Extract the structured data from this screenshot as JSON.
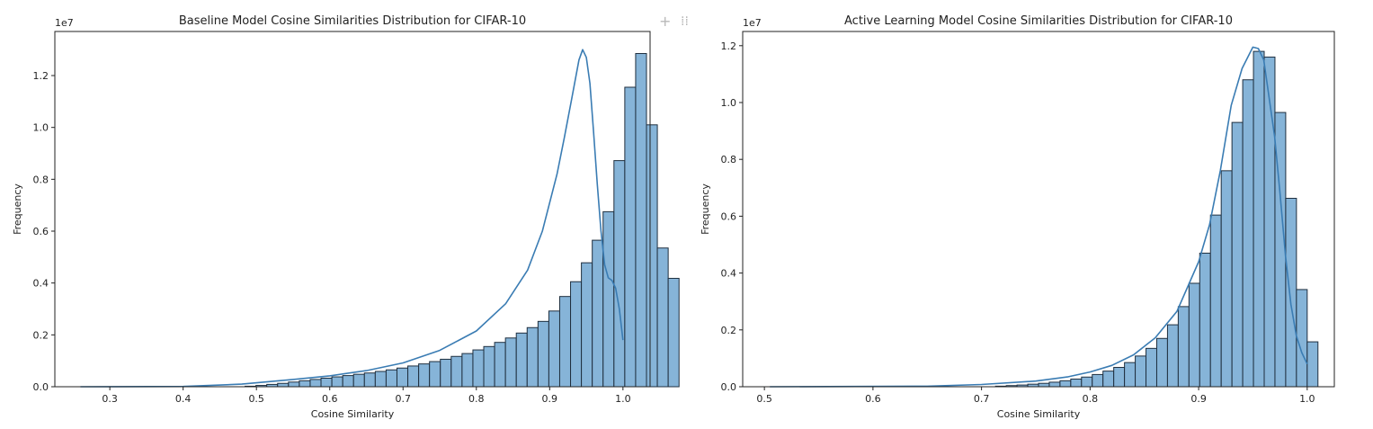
{
  "toolbar": {
    "plus_icon": "+",
    "drag_icon": "⁞⁞"
  },
  "chart_data": [
    {
      "type": "bar",
      "title": "Baseline Model Cosine Similarities Distribution for CIFAR-10",
      "xlabel": "Cosine Similarity",
      "ylabel": "Frequency",
      "y_scale_label": "1e7",
      "xlim": [
        0.225,
        1.037
      ],
      "ylim": [
        0,
        1.37
      ],
      "xticks": [
        0.3,
        0.4,
        0.5,
        0.6,
        0.7,
        0.8,
        0.9,
        1.0
      ],
      "xtick_labels": [
        "0.3",
        "0.4",
        "0.5",
        "0.6",
        "0.7",
        "0.8",
        "0.9",
        "1.0"
      ],
      "yticks": [
        0.0,
        0.2,
        0.4,
        0.6,
        0.8,
        1.0,
        1.2
      ],
      "ytick_labels": [
        "0.0",
        "0.2",
        "0.4",
        "0.6",
        "0.8",
        "1.0",
        "1.2"
      ],
      "grid": false,
      "bin_start": 0.2625,
      "bin_width": 0.0148,
      "values": [
        0,
        0,
        0,
        0,
        0,
        0,
        0,
        0,
        0,
        0,
        0,
        0,
        0,
        0,
        0,
        0.002,
        0.005,
        0.009,
        0.013,
        0.018,
        0.023,
        0.028,
        0.033,
        0.038,
        0.043,
        0.048,
        0.053,
        0.059,
        0.065,
        0.072,
        0.08,
        0.088,
        0.097,
        0.106,
        0.117,
        0.128,
        0.142,
        0.155,
        0.171,
        0.188,
        0.207,
        0.228,
        0.252,
        0.292,
        0.348,
        0.405,
        0.478,
        0.565,
        0.675,
        0.872,
        1.155,
        1.285,
        1.01,
        0.535,
        0.418
      ],
      "kde_x": [
        0.26,
        0.4,
        0.48,
        0.55,
        0.6,
        0.65,
        0.7,
        0.75,
        0.8,
        0.84,
        0.87,
        0.89,
        0.91,
        0.92,
        0.93,
        0.94,
        0.945,
        0.95,
        0.955,
        0.96,
        0.965,
        0.97,
        0.975,
        0.98,
        0.985,
        0.99,
        0.995,
        1.0
      ],
      "kde_y": [
        0,
        0.001,
        0.01,
        0.028,
        0.042,
        0.062,
        0.092,
        0.14,
        0.215,
        0.32,
        0.45,
        0.6,
        0.82,
        0.96,
        1.11,
        1.26,
        1.3,
        1.27,
        1.17,
        0.98,
        0.78,
        0.6,
        0.47,
        0.42,
        0.41,
        0.38,
        0.3,
        0.18
      ],
      "bar_color": "#86b4d8",
      "edge_color": "#1f2f3f",
      "line_color": "#3a7cb3"
    },
    {
      "type": "bar",
      "title": "Active Learning Model Cosine Similarities Distribution for CIFAR-10",
      "xlabel": "Cosine Similarity",
      "ylabel": "Frequency",
      "y_scale_label": "1e7",
      "xlim": [
        0.48,
        1.025
      ],
      "ylim": [
        0,
        1.25
      ],
      "xticks": [
        0.5,
        0.6,
        0.7,
        0.8,
        0.9,
        1.0
      ],
      "xtick_labels": [
        "0.5",
        "0.6",
        "0.7",
        "0.8",
        "0.9",
        "1.0"
      ],
      "yticks": [
        0.0,
        0.2,
        0.4,
        0.6,
        0.8,
        1.0,
        1.2
      ],
      "ytick_labels": [
        "0.0",
        "0.2",
        "0.4",
        "0.6",
        "0.8",
        "1.0",
        "1.2"
      ],
      "grid": false,
      "bin_start": 0.505,
      "bin_width": 0.0099,
      "values": [
        0,
        0,
        0,
        0,
        0,
        0,
        0,
        0,
        0,
        0,
        0,
        0,
        0,
        0,
        0,
        0,
        0,
        0,
        0,
        0,
        0,
        0.002,
        0.004,
        0.006,
        0.009,
        0.012,
        0.016,
        0.021,
        0.027,
        0.034,
        0.043,
        0.055,
        0.068,
        0.085,
        0.108,
        0.135,
        0.17,
        0.218,
        0.282,
        0.364,
        0.47,
        0.604,
        0.76,
        0.93,
        1.08,
        1.18,
        1.16,
        0.965,
        0.663,
        0.342,
        0.158
      ],
      "kde_x": [
        0.505,
        0.65,
        0.7,
        0.75,
        0.78,
        0.8,
        0.82,
        0.84,
        0.86,
        0.88,
        0.9,
        0.91,
        0.92,
        0.93,
        0.94,
        0.95,
        0.955,
        0.96,
        0.97,
        0.975,
        0.98,
        0.985,
        0.99,
        0.995,
        1.0
      ],
      "kde_y": [
        0,
        0.002,
        0.008,
        0.02,
        0.035,
        0.052,
        0.075,
        0.112,
        0.172,
        0.265,
        0.44,
        0.57,
        0.76,
        0.99,
        1.12,
        1.195,
        1.19,
        1.15,
        0.88,
        0.68,
        0.46,
        0.29,
        0.18,
        0.12,
        0.08
      ],
      "bar_color": "#86b4d8",
      "edge_color": "#1f2f3f",
      "line_color": "#3a7cb3"
    }
  ]
}
